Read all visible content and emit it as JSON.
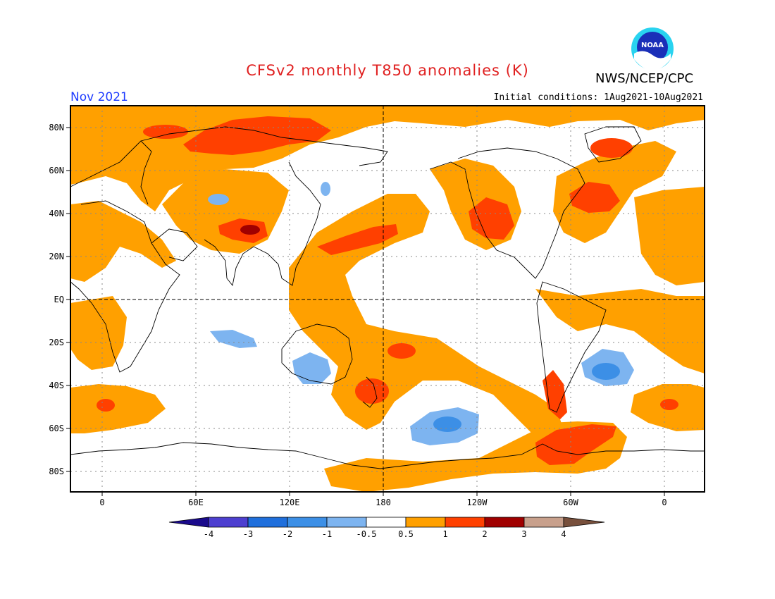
{
  "header": {
    "title": "CFSv2 monthly T850 anomalies (K)",
    "agency": "NWS/NCEP/CPC",
    "logo_text": "NOAA",
    "valid_month": "Nov 2021",
    "initial_conditions": "Initial conditions: 1Aug2021-10Aug2021"
  },
  "map": {
    "projection": "cylindrical equidistant, centered 180",
    "lat_ticks": [
      "80N",
      "60N",
      "40N",
      "20N",
      "EQ",
      "20S",
      "40S",
      "60S",
      "80S"
    ],
    "lon_ticks": [
      "0",
      "60E",
      "120E",
      "180",
      "120W",
      "60W",
      "0"
    ],
    "grid": "dotted",
    "reference_lines": [
      "EQ",
      "180"
    ]
  },
  "colorbar": {
    "tick_labels": [
      "-4",
      "-3",
      "-2",
      "-1",
      "-0.5",
      "0.5",
      "1",
      "2",
      "3",
      "4"
    ],
    "colors": [
      "#1a0a8c",
      "#4d3fd0",
      "#1f6fdc",
      "#3c8fe6",
      "#7db4f0",
      "#ffffff",
      "#ffa000",
      "#ff4000",
      "#a00000",
      "#c8a08c",
      "#78503c"
    ]
  },
  "colors": {
    "pos_05": "#ffa000",
    "pos_1": "#ff4000",
    "pos_2": "#a00000",
    "neg_05": "#7db4f0",
    "neg_1": "#3c8fe6",
    "title": "#e02020",
    "valid": "#1e3cff"
  }
}
